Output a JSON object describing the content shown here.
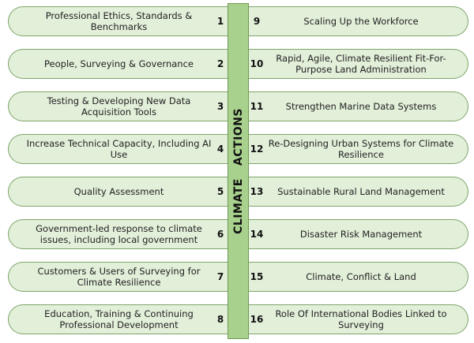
{
  "center_label": "CLIMATE   ACTIONS",
  "colors": {
    "pill_fill": "#e2efd9",
    "pill_border": "#7ea56a",
    "bar_fill": "#a9d18e"
  },
  "left": [
    {
      "num": "1",
      "text": "Professional Ethics, Standards & Benchmarks"
    },
    {
      "num": "2",
      "text": "People, Surveying & Governance"
    },
    {
      "num": "3",
      "text": "Testing & Developing New Data Acquisition Tools"
    },
    {
      "num": "4",
      "text": "Increase Technical Capacity, Including AI Use"
    },
    {
      "num": "5",
      "text": "Quality Assessment"
    },
    {
      "num": "6",
      "text": "Government-led response to climate issues, including local government"
    },
    {
      "num": "7",
      "text": "Customers & Users of Surveying for Climate Resilience"
    },
    {
      "num": "8",
      "text": "Education, Training & Continuing Professional Development"
    }
  ],
  "right": [
    {
      "num": "9",
      "text": "Scaling Up the Workforce"
    },
    {
      "num": "10",
      "text": "Rapid, Agile, Climate Resilient Fit-For-Purpose Land Administration"
    },
    {
      "num": "11",
      "text": "Strengthen Marine Data Systems"
    },
    {
      "num": "12",
      "text": "Re-Designing Urban Systems for Climate Resilience"
    },
    {
      "num": "13",
      "text": "Sustainable Rural Land Management"
    },
    {
      "num": "14",
      "text": "Disaster Risk Management"
    },
    {
      "num": "15",
      "text": "Climate, Conflict & Land"
    },
    {
      "num": "16",
      "text": "Role Of International Bodies Linked to Surveying"
    }
  ]
}
